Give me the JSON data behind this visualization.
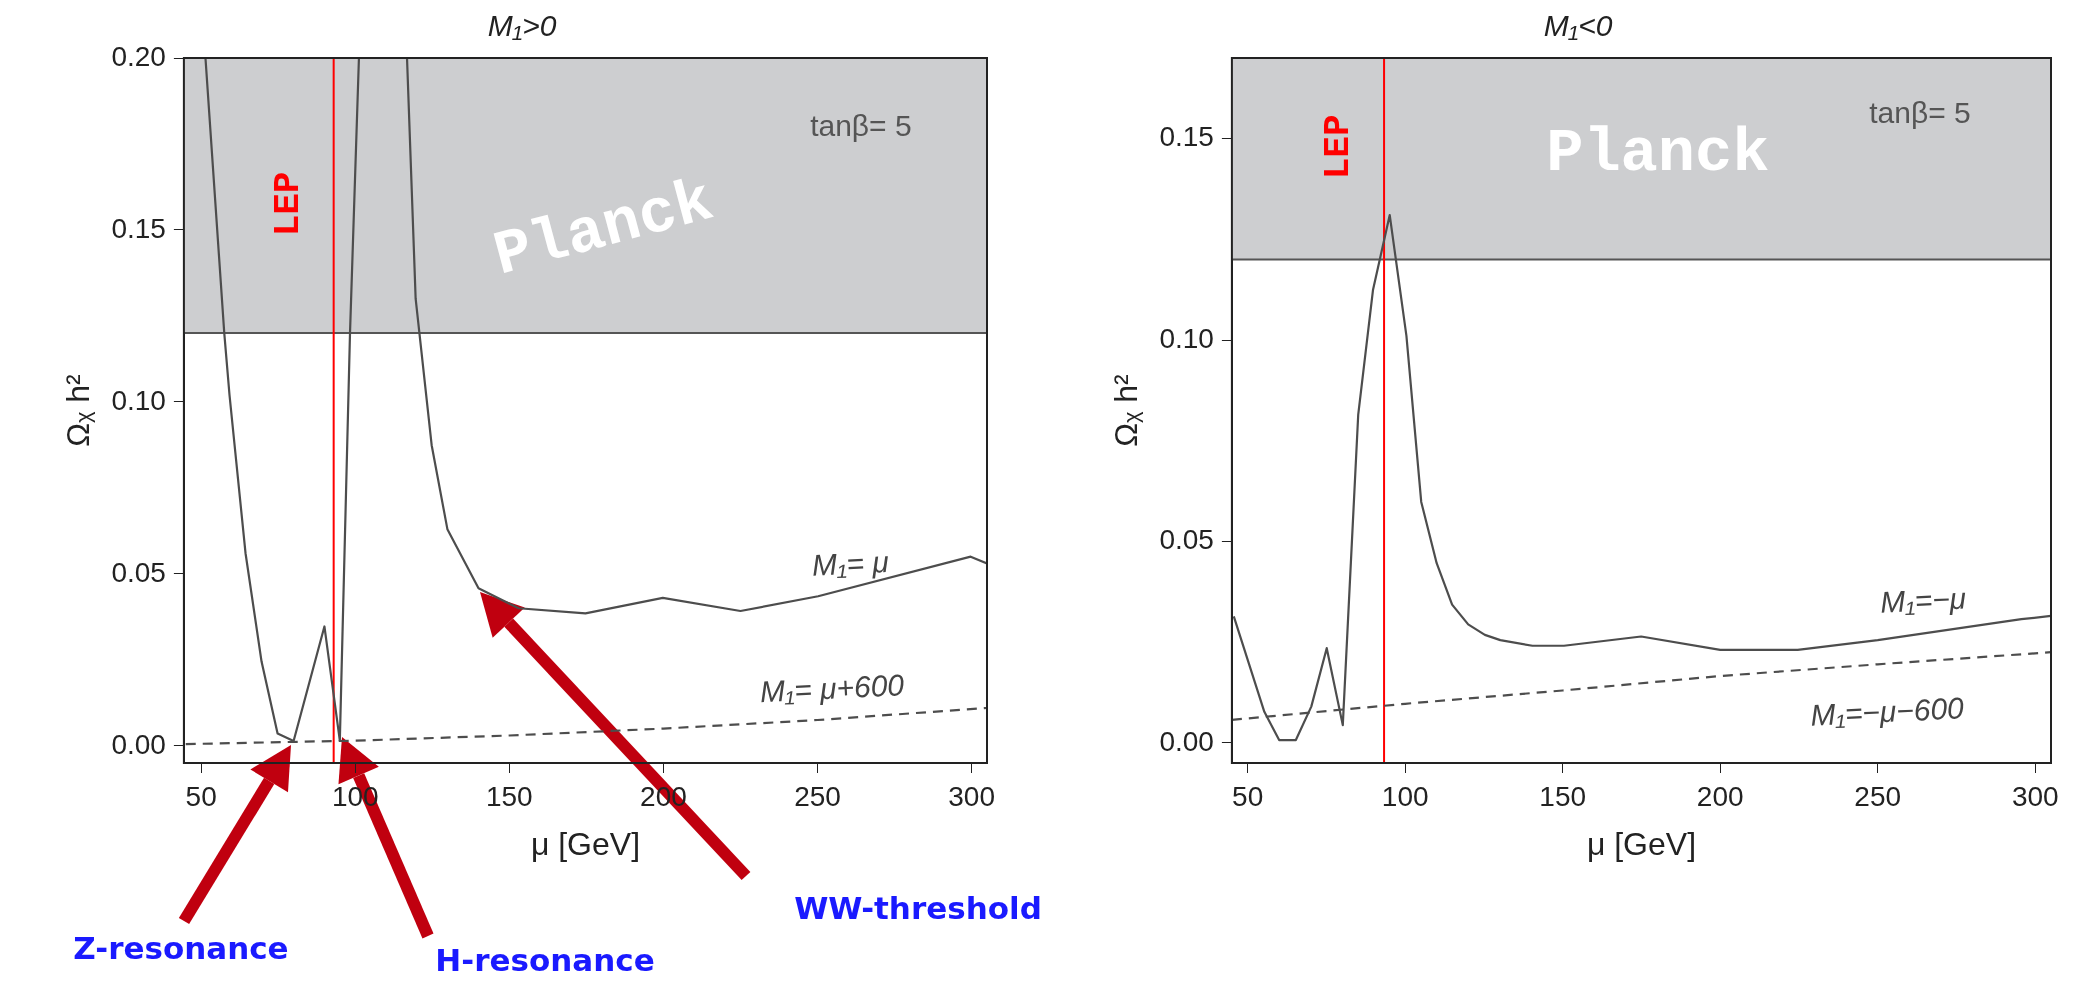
{
  "chart_data": [
    {
      "type": "line",
      "title": "M₁>0",
      "xlabel": "μ [GeV]",
      "ylabel": "Ωᵪ h²",
      "xlim": [
        44.4,
        305
      ],
      "xticks": [
        50,
        100,
        150,
        200,
        250,
        300
      ],
      "ylim": [
        -0.005,
        0.2
      ],
      "yticks": [
        {
          "value": 0,
          "label": "0.00"
        },
        {
          "value": 0.05,
          "label": "0.05"
        },
        {
          "value": 0.1,
          "label": "0.10"
        },
        {
          "value": 0.15,
          "label": "0.15"
        },
        {
          "value": 0.2,
          "label": "0.20"
        }
      ],
      "grid": false,
      "legend": false,
      "marker": "none",
      "series": [
        {
          "name": "M₁= μ",
          "color": "#4d4d4d",
          "line_style": "solid",
          "x": [
            51.4,
            57.5,
            59.2,
            64.4,
            69.6,
            74.8,
            80,
            90,
            95,
            98.3,
            101.2,
            null,
            116.8,
            119.6,
            124.8,
            129.9,
            140,
            153,
            174.7,
            199.8,
            225,
            250.2,
            299.7,
            305
          ],
          "values": [
            0.2,
            0.12,
            0.102,
            0.056,
            0.0245,
            0.0036,
            0.0014,
            0.0347,
            0.0015,
            0.12,
            0.2,
            null,
            0.2,
            0.13,
            0.0874,
            0.063,
            0.0458,
            0.04,
            0.0385,
            0.043,
            0.0392,
            0.0435,
            0.055,
            0.053
          ]
        },
        {
          "name": "M₁= μ+600",
          "color": "#4d4d4d",
          "line_style": "dashed",
          "x": [
            45,
            100,
            150,
            200,
            250,
            305
          ],
          "values": [
            0.0005,
            0.0015,
            0.003,
            0.005,
            0.0075,
            0.011
          ]
        }
      ],
      "bands": [
        {
          "axis": "y",
          "from": 0.12,
          "to": 0.2,
          "label": "Planck",
          "color": "#cdced0"
        }
      ],
      "ref_lines": [
        {
          "axis": "y",
          "value": 0.12,
          "color": "#555555"
        },
        {
          "axis": "x",
          "value": 93,
          "label": "LEP",
          "color": "#ff0000"
        }
      ],
      "annotations": [
        "tanβ= 5",
        "Z-resonance",
        "H-resonance",
        "WW-threshold"
      ]
    },
    {
      "type": "line",
      "title": "M₁<0",
      "xlabel": "μ [GeV]",
      "ylabel": "Ωᵪ h²",
      "xlim": [
        45,
        305
      ],
      "xticks": [
        50,
        100,
        150,
        200,
        250,
        300
      ],
      "ylim": [
        -0.005,
        0.17
      ],
      "yticks": [
        {
          "value": 0,
          "label": "0.00"
        },
        {
          "value": 0.05,
          "label": "0.05"
        },
        {
          "value": 0.1,
          "label": "0.10"
        },
        {
          "value": 0.15,
          "label": "0.15"
        }
      ],
      "grid": false,
      "legend": false,
      "marker": "none",
      "series": [
        {
          "name": "M₁=−μ",
          "color": "#4d4d4d",
          "line_style": "solid",
          "x": [
            45.6,
            55.3,
            60,
            65.3,
            70.2,
            75.1,
            80.2,
            85.1,
            89.8,
            95.1,
            100.4,
            105.1,
            110,
            114.9,
            120,
            125.3,
            130.2,
            140.4,
            150.4,
            174.9,
            200,
            224.6,
            250,
            295.6,
            305
          ],
          "values": [
            0.0314,
            0.0077,
            0.0007,
            0.0007,
            0.009,
            0.0235,
            0.0044,
            0.0815,
            0.1125,
            0.131,
            0.101,
            0.0598,
            0.0446,
            0.0343,
            0.0294,
            0.0268,
            0.0255,
            0.0241,
            0.0241,
            0.0264,
            0.0231,
            0.0231,
            0.0255,
            0.0307,
            0.0315
          ]
        },
        {
          "name": "M₁=−μ−600",
          "color": "#4d4d4d",
          "line_style": "dashed",
          "x": [
            45,
            100,
            150,
            200,
            250,
            305
          ],
          "values": [
            0.0057,
            0.0097,
            0.013,
            0.0166,
            0.0195,
            0.0225
          ]
        }
      ],
      "bands": [
        {
          "axis": "y",
          "from": 0.12,
          "to": 0.17,
          "label": "Planck",
          "color": "#cdced0"
        }
      ],
      "ref_lines": [
        {
          "axis": "y",
          "value": 0.12,
          "color": "#555555"
        },
        {
          "axis": "x",
          "value": 93.3,
          "label": "LEP",
          "color": "#ff0000"
        }
      ],
      "annotations": [
        "tanβ= 5"
      ]
    }
  ]
}
